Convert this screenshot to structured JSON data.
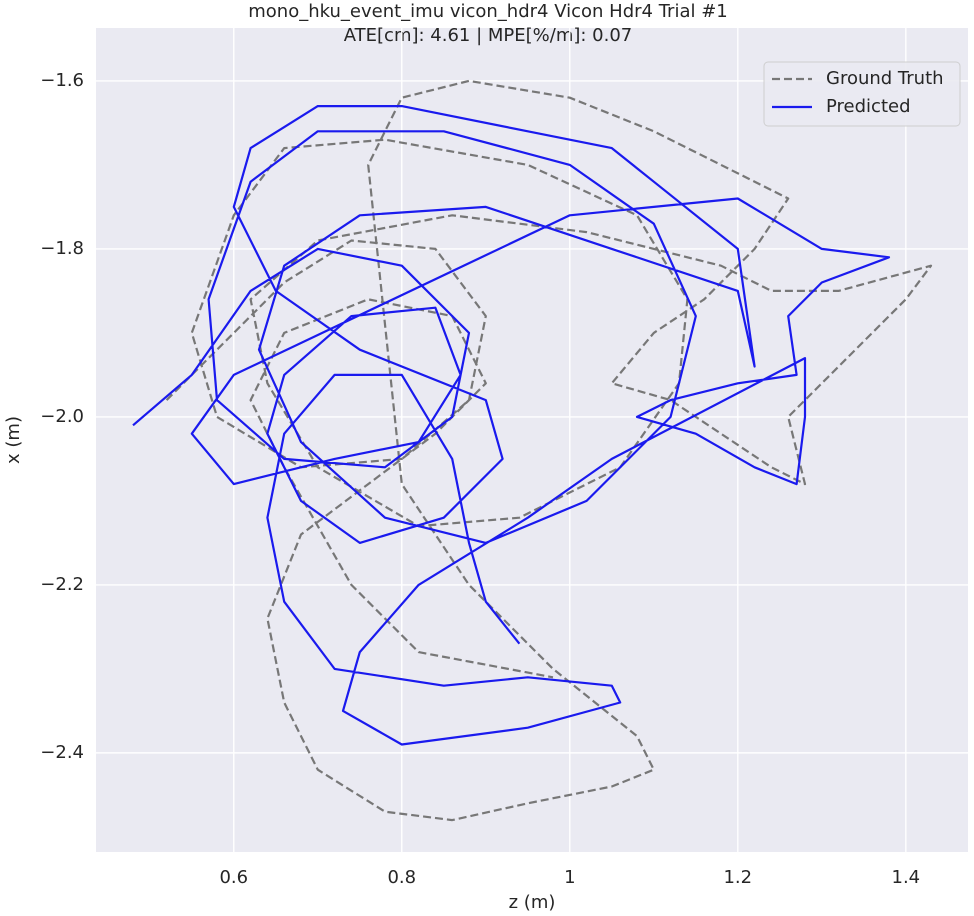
{
  "chart_data": {
    "type": "line",
    "title": "mono_hku_event_imu vicon_hdr4 Vicon Hdr4 Trial #1",
    "subtitle": "ATE[cm]: 4.61 | MPE[%/m]: 0.07",
    "x_label": "z (m)",
    "y_label": "x (m)",
    "xlim": [
      0.436,
      1.474
    ],
    "ylim": [
      -2.518,
      -1.537
    ],
    "xticks": [
      0.6,
      0.8,
      1.0,
      1.2,
      1.4
    ],
    "yticks": [
      {
        "value": -1.6,
        "label": "−1.6"
      },
      {
        "value": -1.8,
        "label": "−1.8"
      },
      {
        "value": -2.0,
        "label": "−2.0"
      },
      {
        "value": -2.2,
        "label": "−2.2"
      },
      {
        "value": -2.4,
        "label": "−2.4"
      }
    ],
    "grid": true,
    "legend": "upper right",
    "series": [
      {
        "name": "Ground Truth",
        "color": "#777777",
        "dash": true,
        "x": [
          0.52,
          0.58,
          0.66,
          0.74,
          0.84,
          0.9,
          0.88,
          0.8,
          0.68,
          0.58,
          0.55,
          0.6,
          0.66,
          0.78,
          0.95,
          1.08,
          1.14,
          1.13,
          1.06,
          0.94,
          0.82,
          0.7,
          0.64,
          0.62,
          0.7,
          0.86,
          1.02,
          1.18,
          1.24,
          1.32,
          1.43,
          1.4,
          1.34,
          1.3,
          1.26,
          1.28,
          1.24,
          1.18,
          1.12,
          1.05,
          1.1,
          1.16,
          1.22,
          1.26,
          1.1,
          1.0,
          0.88,
          0.8,
          0.76,
          0.8,
          0.88,
          0.98,
          1.08,
          1.1,
          1.05,
          0.95,
          0.86,
          0.78,
          0.7,
          0.66,
          0.64,
          0.68,
          0.76,
          0.84,
          0.9,
          0.86,
          0.76,
          0.66,
          0.62,
          0.66,
          0.74,
          0.82,
          0.98
        ],
        "values": [
          -1.98,
          -1.92,
          -1.84,
          -1.79,
          -1.8,
          -1.88,
          -1.98,
          -2.05,
          -2.06,
          -2.0,
          -1.9,
          -1.76,
          -1.68,
          -1.67,
          -1.7,
          -1.76,
          -1.86,
          -1.96,
          -2.06,
          -2.12,
          -2.13,
          -2.06,
          -1.96,
          -1.86,
          -1.79,
          -1.76,
          -1.78,
          -1.82,
          -1.85,
          -1.85,
          -1.82,
          -1.86,
          -1.92,
          -1.96,
          -2.0,
          -2.08,
          -2.06,
          -2.02,
          -1.98,
          -1.96,
          -1.9,
          -1.86,
          -1.8,
          -1.74,
          -1.66,
          -1.62,
          -1.6,
          -1.62,
          -1.7,
          -2.08,
          -2.2,
          -2.3,
          -2.38,
          -2.42,
          -2.44,
          -2.46,
          -2.48,
          -2.47,
          -2.42,
          -2.34,
          -2.24,
          -2.14,
          -2.08,
          -2.02,
          -1.96,
          -1.88,
          -1.86,
          -1.9,
          -1.98,
          -2.06,
          -2.2,
          -2.28,
          -2.31
        ]
      },
      {
        "name": "Predicted",
        "color": "#1a1aee",
        "dash": false,
        "x": [
          0.48,
          0.55,
          0.62,
          0.7,
          0.8,
          0.88,
          0.86,
          0.78,
          0.66,
          0.58,
          0.57,
          0.62,
          0.7,
          0.85,
          1.0,
          1.1,
          1.15,
          1.12,
          1.02,
          0.9,
          0.78,
          0.68,
          0.63,
          0.66,
          0.75,
          0.9,
          1.05,
          1.2,
          1.22,
          1.2,
          1.1,
          1.05,
          0.95,
          0.8,
          0.7,
          0.62,
          0.6,
          0.65,
          0.75,
          0.9,
          0.92,
          0.85,
          0.75,
          0.68,
          0.64,
          0.66,
          0.74,
          0.84,
          0.87,
          0.82,
          0.72,
          0.6,
          0.55,
          0.6,
          1.0,
          1.2,
          1.3,
          1.38,
          1.3,
          1.26,
          1.27,
          1.2,
          1.12,
          1.08,
          1.15,
          1.22,
          1.27,
          1.28,
          1.28,
          1.05,
          0.95,
          0.82,
          0.75,
          0.73,
          0.8,
          0.95,
          1.06,
          1.05,
          0.95,
          0.85,
          0.72,
          0.66,
          0.64,
          0.66,
          0.72,
          0.8,
          0.86,
          0.88,
          0.9,
          0.94
        ],
        "values": [
          -2.01,
          -1.95,
          -1.85,
          -1.8,
          -1.82,
          -1.9,
          -2.0,
          -2.06,
          -2.05,
          -1.98,
          -1.86,
          -1.72,
          -1.66,
          -1.66,
          -1.7,
          -1.77,
          -1.88,
          -2.0,
          -2.1,
          -2.15,
          -2.12,
          -2.03,
          -1.92,
          -1.82,
          -1.76,
          -1.75,
          -1.8,
          -1.85,
          -1.94,
          -1.8,
          -1.72,
          -1.68,
          -1.66,
          -1.63,
          -1.63,
          -1.68,
          -1.75,
          -1.85,
          -1.92,
          -1.98,
          -2.05,
          -2.12,
          -2.15,
          -2.1,
          -2.02,
          -1.95,
          -1.88,
          -1.87,
          -1.95,
          -2.03,
          -2.05,
          -2.08,
          -2.02,
          -1.95,
          -1.76,
          -1.74,
          -1.8,
          -1.81,
          -1.84,
          -1.88,
          -1.95,
          -1.96,
          -1.98,
          -2.0,
          -2.02,
          -2.06,
          -2.08,
          -2.0,
          -1.93,
          -2.05,
          -2.12,
          -2.2,
          -2.28,
          -2.35,
          -2.39,
          -2.37,
          -2.34,
          -2.32,
          -2.31,
          -2.32,
          -2.3,
          -2.22,
          -2.12,
          -2.02,
          -1.95,
          -1.95,
          -2.05,
          -2.15,
          -2.22,
          -2.27
        ]
      }
    ]
  }
}
